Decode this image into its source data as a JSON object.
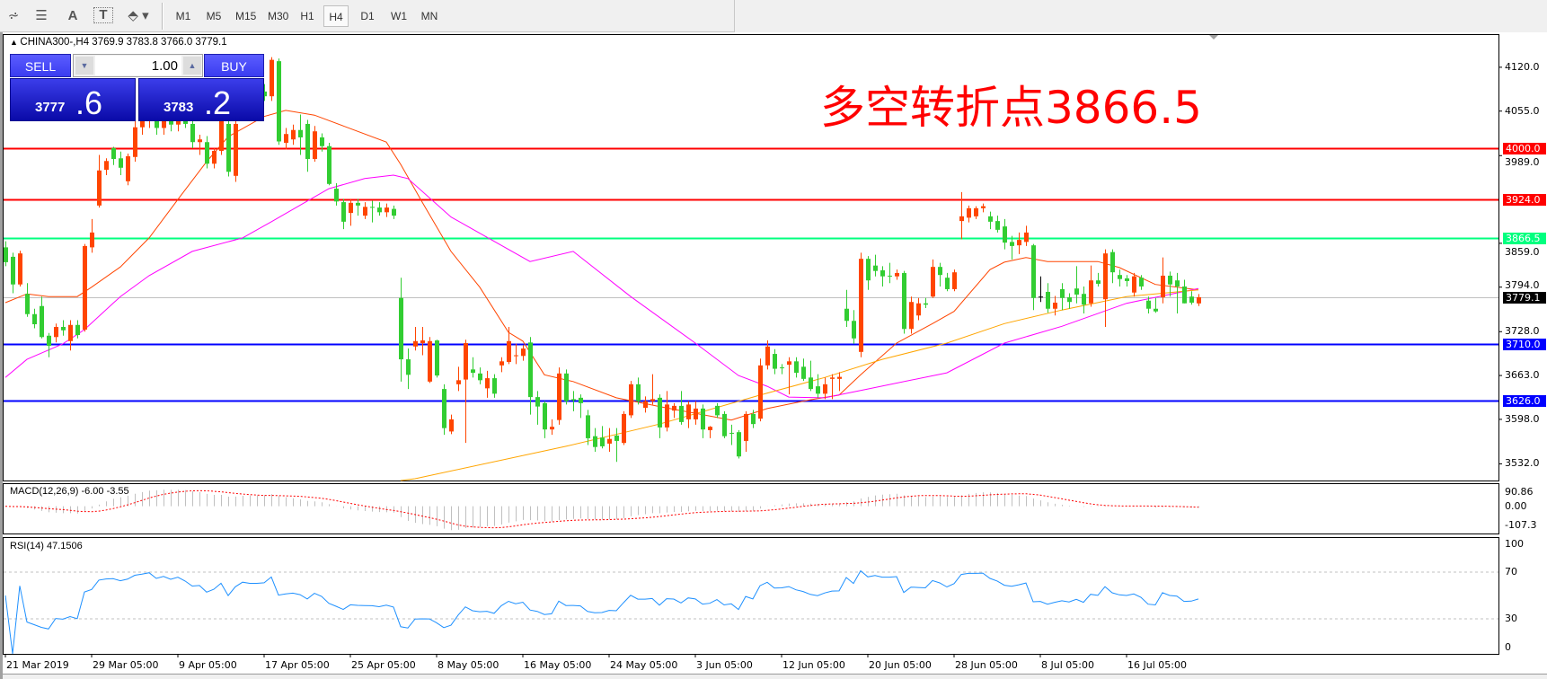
{
  "toolbar": {
    "icons": [
      "elliott-wave-icon",
      "fibonacci-fan-icon",
      "text-label-icon",
      "text-box-icon",
      "arrows-dropdown-icon"
    ],
    "text_icon_label": "A",
    "timeframes": [
      "M1",
      "M5",
      "M15",
      "M30",
      "H1",
      "H4",
      "D1",
      "W1",
      "MN"
    ],
    "active_timeframe": "H4"
  },
  "chart": {
    "symbol_line": "CHINA300-,H4  3769.9 3783.8 3766.0 3779.1",
    "trade_panel": {
      "sell_label": "SELL",
      "buy_label": "BUY",
      "lot_value": "1.00",
      "sell_price_main": "3777",
      "sell_price_frac": ".6",
      "buy_price_main": "3783",
      "buy_price_frac": ".2"
    },
    "annotation": "多空转折点3866.5",
    "macd_label": "MACD(12,26,9) -6.00 -3.55",
    "rsi_label": "RSI(14) 47.1506",
    "macd_scale": [
      "90.86",
      "0.00",
      "-107.3"
    ],
    "rsi_scale": [
      "100",
      "70",
      "30",
      "0"
    ]
  },
  "chart_data": {
    "type": "candlestick",
    "symbol": "CHINA300-",
    "timeframe": "H4",
    "ylim": [
      3507,
      4169
    ],
    "price_ticks": [
      "4120.0",
      "4055.0",
      "3989.0",
      "3859.0",
      "3794.0",
      "3728.0",
      "3663.0",
      "3598.0",
      "3532.0"
    ],
    "x_tick_labels": [
      "21 Mar 2019",
      "29 Mar 05:00",
      "9 Apr 05:00",
      "17 Apr 05:00",
      "25 Apr 05:00",
      "8 May 05:00",
      "16 May 05:00",
      "24 May 05:00",
      "3 Jun 05:00",
      "12 Jun 05:00",
      "20 Jun 05:00",
      "28 Jun 05:00",
      "8 Jul 05:00",
      "16 Jul 05:00"
    ],
    "x_tick_every_bars": 12,
    "up_color": "#ff4500",
    "down_color": "#32cd32",
    "horizontal_lines": [
      {
        "price": 4000.0,
        "label": "4000.0",
        "color": "#ff0000"
      },
      {
        "price": 3924.0,
        "label": "3924.0",
        "color": "#ff0000"
      },
      {
        "price": 3866.5,
        "label": "3866.5",
        "color": "#00ff7f"
      },
      {
        "price": 3779.1,
        "label": "3779.1",
        "color": "#c0c0c0",
        "tag_color": "#000000"
      },
      {
        "price": 3710.0,
        "label": "3710.0",
        "color": "#0000ff"
      },
      {
        "price": 3626.0,
        "label": "3626.0",
        "color": "#0000ff"
      }
    ],
    "ohlc": [
      [
        3853,
        3862,
        3825,
        3831
      ],
      [
        3839,
        3845,
        3785,
        3798
      ],
      [
        3798,
        3848,
        3795,
        3844
      ],
      [
        3784,
        3800,
        3750,
        3754
      ],
      [
        3754,
        3762,
        3733,
        3739
      ],
      [
        3766,
        3780,
        3718,
        3720
      ],
      [
        3722,
        3726,
        3690,
        3707
      ],
      [
        3720,
        3740,
        3712,
        3735
      ],
      [
        3735,
        3745,
        3722,
        3730
      ],
      [
        3714,
        3745,
        3700,
        3738
      ],
      [
        3738,
        3745,
        3718,
        3723
      ],
      [
        3731,
        3858,
        3728,
        3855
      ],
      [
        3853,
        3895,
        3845,
        3875
      ],
      [
        3915,
        3990,
        3912,
        3967
      ],
      [
        3968,
        3985,
        3960,
        3981
      ],
      [
        4000,
        4002,
        3975,
        3984
      ],
      [
        3985,
        3995,
        3960,
        3971
      ],
      [
        3951,
        3992,
        3945,
        3988
      ],
      [
        3987,
        4050,
        3980,
        4031
      ],
      [
        4031,
        4055,
        4020,
        4045
      ],
      [
        4045,
        4070,
        4030,
        4060
      ],
      [
        4060,
        4075,
        4020,
        4030
      ],
      [
        4030,
        4060,
        4020,
        4050
      ],
      [
        4050,
        4065,
        4025,
        4035
      ],
      [
        4035,
        4060,
        4025,
        4055
      ],
      [
        4055,
        4065,
        4030,
        4036
      ],
      [
        4036,
        4045,
        4000,
        4009
      ],
      [
        4009,
        4020,
        3990,
        4013
      ],
      [
        4009,
        4018,
        3970,
        3977
      ],
      [
        3977,
        4000,
        3970,
        3996
      ],
      [
        3996,
        4045,
        3990,
        4040
      ],
      [
        4036,
        4045,
        3958,
        3965
      ],
      [
        3959,
        4045,
        3950,
        4036
      ],
      [
        4072,
        4092,
        4065,
        4080
      ],
      [
        4073,
        4083,
        4063,
        4073
      ],
      [
        4078,
        4090,
        4065,
        4073
      ],
      [
        4084,
        4095,
        4070,
        4077
      ],
      [
        4077,
        4135,
        4070,
        4131
      ],
      [
        4129,
        4133,
        4005,
        4010
      ],
      [
        4008,
        4030,
        3998,
        4021
      ],
      [
        4013,
        4035,
        4005,
        4027
      ],
      [
        4027,
        4050,
        3990,
        4016
      ],
      [
        4036,
        4042,
        3965,
        3984
      ],
      [
        3984,
        4033,
        3980,
        4025
      ],
      [
        4016,
        4022,
        3995,
        4003
      ],
      [
        4003,
        4008,
        3945,
        3947
      ],
      [
        3940,
        3948,
        3915,
        3921
      ],
      [
        3920,
        3925,
        3880,
        3891
      ],
      [
        3904,
        3925,
        3885,
        3919
      ],
      [
        3919,
        3925,
        3900,
        3915
      ],
      [
        3900,
        3920,
        3895,
        3913
      ],
      [
        3913,
        3922,
        3890,
        3912
      ],
      [
        3912,
        3920,
        3900,
        3905
      ],
      [
        3905,
        3918,
        3898,
        3912
      ],
      [
        3910,
        3915,
        3895,
        3900
      ],
      [
        3778,
        3808,
        3654,
        3687
      ],
      [
        3687,
        3703,
        3643,
        3664
      ],
      [
        3706,
        3735,
        3700,
        3714
      ],
      [
        3711,
        3735,
        3693,
        3715
      ],
      [
        3654,
        3720,
        3652,
        3714
      ],
      [
        3715,
        3716,
        3660,
        3663
      ],
      [
        3643,
        3650,
        3575,
        3585
      ],
      [
        3580,
        3605,
        3576,
        3598
      ],
      [
        3650,
        3676,
        3640,
        3656
      ],
      [
        3657,
        3716,
        3563,
        3711
      ],
      [
        3672,
        3690,
        3660,
        3667
      ],
      [
        3666,
        3675,
        3650,
        3656
      ],
      [
        3644,
        3670,
        3630,
        3659
      ],
      [
        3659,
        3665,
        3630,
        3636
      ],
      [
        3678,
        3690,
        3668,
        3684
      ],
      [
        3683,
        3735,
        3680,
        3714
      ],
      [
        3692,
        3710,
        3680,
        3693
      ],
      [
        3692,
        3708,
        3685,
        3703
      ],
      [
        3712,
        3720,
        3605,
        3631
      ],
      [
        3631,
        3640,
        3590,
        3617
      ],
      [
        3622,
        3625,
        3570,
        3583
      ],
      [
        3583,
        3598,
        3575,
        3587
      ],
      [
        3597,
        3675,
        3590,
        3666
      ],
      [
        3666,
        3672,
        3620,
        3625
      ],
      [
        3628,
        3640,
        3610,
        3626
      ],
      [
        3630,
        3635,
        3600,
        3622
      ],
      [
        3604,
        3612,
        3560,
        3570
      ],
      [
        3573,
        3585,
        3550,
        3557
      ],
      [
        3571,
        3588,
        3555,
        3558
      ],
      [
        3562,
        3585,
        3550,
        3569
      ],
      [
        3574,
        3585,
        3535,
        3566
      ],
      [
        3563,
        3610,
        3560,
        3606
      ],
      [
        3604,
        3655,
        3600,
        3650
      ],
      [
        3650,
        3660,
        3620,
        3625
      ],
      [
        3615,
        3632,
        3608,
        3625
      ],
      [
        3625,
        3665,
        3620,
        3628
      ],
      [
        3630,
        3635,
        3570,
        3586
      ],
      [
        3586,
        3640,
        3580,
        3620
      ],
      [
        3611,
        3622,
        3600,
        3618
      ],
      [
        3618,
        3640,
        3590,
        3594
      ],
      [
        3598,
        3625,
        3585,
        3620
      ],
      [
        3598,
        3625,
        3590,
        3614
      ],
      [
        3614,
        3620,
        3570,
        3583
      ],
      [
        3582,
        3588,
        3570,
        3587
      ],
      [
        3618,
        3622,
        3600,
        3604
      ],
      [
        3606,
        3610,
        3570,
        3573
      ],
      [
        3578,
        3590,
        3560,
        3578
      ],
      [
        3579,
        3582,
        3540,
        3543
      ],
      [
        3566,
        3610,
        3550,
        3606
      ],
      [
        3606,
        3612,
        3585,
        3591
      ],
      [
        3599,
        3688,
        3595,
        3678
      ],
      [
        3678,
        3715,
        3672,
        3706
      ],
      [
        3695,
        3702,
        3665,
        3673
      ],
      [
        3675,
        3680,
        3665,
        3675
      ],
      [
        3679,
        3690,
        3635,
        3684
      ],
      [
        3684,
        3690,
        3660,
        3667
      ],
      [
        3676,
        3688,
        3655,
        3658
      ],
      [
        3660,
        3685,
        3640,
        3643
      ],
      [
        3647,
        3665,
        3630,
        3636
      ],
      [
        3636,
        3660,
        3628,
        3650
      ],
      [
        3658,
        3665,
        3628,
        3660
      ],
      [
        3658,
        3668,
        3640,
        3661
      ],
      [
        3762,
        3790,
        3735,
        3744
      ],
      [
        3744,
        3760,
        3710,
        3718
      ],
      [
        3698,
        3845,
        3690,
        3836
      ],
      [
        3836,
        3840,
        3790,
        3804
      ],
      [
        3826,
        3842,
        3810,
        3818
      ],
      [
        3819,
        3825,
        3795,
        3810
      ],
      [
        3811,
        3830,
        3800,
        3810
      ],
      [
        3810,
        3820,
        3805,
        3815
      ],
      [
        3815,
        3818,
        3725,
        3732
      ],
      [
        3732,
        3780,
        3725,
        3772
      ],
      [
        3752,
        3778,
        3745,
        3770
      ],
      [
        3770,
        3778,
        3763,
        3768
      ],
      [
        3780,
        3835,
        3778,
        3824
      ],
      [
        3824,
        3830,
        3795,
        3812
      ],
      [
        3808,
        3815,
        3788,
        3791
      ],
      [
        3791,
        3820,
        3788,
        3816
      ],
      [
        3892,
        3935,
        3865,
        3899
      ],
      [
        3897,
        3915,
        3890,
        3911
      ],
      [
        3899,
        3914,
        3895,
        3911
      ],
      [
        3911,
        3918,
        3905,
        3914
      ],
      [
        3899,
        3906,
        3880,
        3891
      ],
      [
        3892,
        3900,
        3875,
        3879
      ],
      [
        3884,
        3895,
        3850,
        3860
      ],
      [
        3861,
        3870,
        3835,
        3855
      ],
      [
        3856,
        3875,
        3843,
        3864
      ],
      [
        3861,
        3885,
        3855,
        3875
      ],
      [
        3856,
        3858,
        3760,
        3778
      ],
      [
        3780,
        3810,
        3772,
        3780
      ],
      [
        3787,
        3800,
        3756,
        3762
      ],
      [
        3762,
        3781,
        3752,
        3771
      ],
      [
        3791,
        3800,
        3760,
        3778
      ],
      [
        3779,
        3785,
        3762,
        3772
      ],
      [
        3792,
        3825,
        3770,
        3783
      ],
      [
        3784,
        3795,
        3755,
        3768
      ],
      [
        3770,
        3826,
        3765,
        3804
      ],
      [
        3804,
        3815,
        3795,
        3799
      ],
      [
        3776,
        3850,
        3735,
        3844
      ],
      [
        3846,
        3850,
        3800,
        3816
      ],
      [
        3812,
        3820,
        3795,
        3806
      ],
      [
        3807,
        3812,
        3795,
        3803
      ],
      [
        3786,
        3815,
        3780,
        3810
      ],
      [
        3808,
        3812,
        3790,
        3795
      ],
      [
        3774,
        3780,
        3755,
        3762
      ],
      [
        3762,
        3778,
        3756,
        3758
      ],
      [
        3779,
        3838,
        3770,
        3811
      ],
      [
        3811,
        3817,
        3780,
        3798
      ],
      [
        3804,
        3815,
        3755,
        3795
      ],
      [
        3795,
        3805,
        3770,
        3770
      ],
      [
        3780,
        3788,
        3768,
        3771
      ],
      [
        3769.9,
        3783.8,
        3766.0,
        3779.1
      ]
    ],
    "moving_averages": [
      {
        "color": "#ff4500",
        "points": [
          [
            0,
            3771
          ],
          [
            3,
            3784
          ],
          [
            6,
            3780
          ],
          [
            10,
            3780
          ],
          [
            12,
            3794
          ],
          [
            16,
            3824
          ],
          [
            20,
            3867
          ],
          [
            24,
            3924
          ],
          [
            28,
            3980
          ],
          [
            31,
            4017
          ],
          [
            36,
            4047
          ],
          [
            39,
            4056
          ],
          [
            43,
            4049
          ],
          [
            47,
            4033
          ],
          [
            53,
            4009
          ],
          [
            55,
            3976
          ],
          [
            58,
            3920
          ],
          [
            62,
            3847
          ],
          [
            66,
            3794
          ],
          [
            70,
            3727
          ],
          [
            72,
            3714
          ],
          [
            75,
            3664
          ],
          [
            79,
            3654
          ],
          [
            85,
            3630
          ],
          [
            91,
            3617
          ],
          [
            101,
            3597
          ],
          [
            106,
            3614
          ],
          [
            112,
            3627
          ],
          [
            116,
            3634
          ],
          [
            119,
            3664
          ],
          [
            124,
            3711
          ],
          [
            129,
            3740
          ],
          [
            132,
            3758
          ],
          [
            137,
            3820
          ],
          [
            139,
            3831
          ],
          [
            142,
            3838
          ],
          [
            145,
            3832
          ],
          [
            152,
            3832
          ],
          [
            155,
            3823
          ],
          [
            160,
            3798
          ],
          [
            166,
            3790
          ]
        ]
      },
      {
        "color": "#ff00ff",
        "points": [
          [
            0,
            3660
          ],
          [
            3,
            3687
          ],
          [
            8,
            3710
          ],
          [
            11,
            3731
          ],
          [
            16,
            3780
          ],
          [
            20,
            3811
          ],
          [
            26,
            3847
          ],
          [
            33,
            3867
          ],
          [
            37,
            3891
          ],
          [
            45,
            3940
          ],
          [
            50,
            3955
          ],
          [
            54,
            3960
          ],
          [
            56,
            3955
          ],
          [
            62,
            3898
          ],
          [
            73,
            3832
          ],
          [
            79,
            3847
          ],
          [
            87,
            3780
          ],
          [
            96,
            3711
          ],
          [
            102,
            3663
          ],
          [
            106,
            3647
          ],
          [
            109,
            3631
          ],
          [
            114,
            3630
          ],
          [
            120,
            3643
          ],
          [
            131,
            3667
          ],
          [
            139,
            3711
          ],
          [
            147,
            3736
          ],
          [
            156,
            3770
          ],
          [
            166,
            3792
          ]
        ]
      },
      {
        "color": "#ffa500",
        "points": [
          [
            55,
            3507
          ],
          [
            57,
            3510
          ],
          [
            78,
            3558
          ],
          [
            91,
            3591
          ],
          [
            105,
            3634
          ],
          [
            114,
            3660
          ],
          [
            122,
            3687
          ],
          [
            131,
            3711
          ],
          [
            139,
            3740
          ],
          [
            147,
            3760
          ],
          [
            156,
            3780
          ],
          [
            166,
            3790
          ]
        ]
      }
    ],
    "macd": {
      "fast": 12,
      "slow": 26,
      "signal": 9,
      "value": -6.0,
      "signal_value": -3.55,
      "ylim": [
        -107.3,
        90.86
      ],
      "histogram_color": "#c0c0c0",
      "signal_color": "#ff0000"
    },
    "rsi": {
      "period": 14,
      "value": 47.1506,
      "ylim": [
        0,
        100
      ],
      "levels": [
        70,
        30
      ],
      "color": "#1e90ff"
    }
  }
}
